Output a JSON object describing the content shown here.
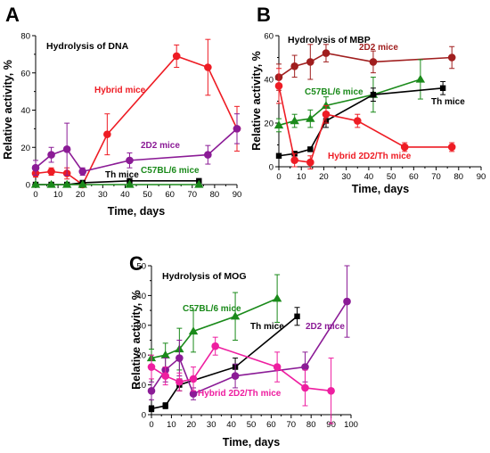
{
  "chart_data": [
    {
      "type": "line",
      "panel_letter": "A",
      "title": "Hydrolysis of DNA",
      "xlabel": "Time, days",
      "ylabel": "Relative activity, %",
      "xlim": [
        0,
        90
      ],
      "ylim": [
        0,
        80
      ],
      "xticks": [
        0,
        10,
        20,
        30,
        40,
        50,
        60,
        70,
        80,
        90
      ],
      "yticks": [
        0,
        20,
        40,
        60,
        80
      ],
      "series": [
        {
          "name": "Hybrid mice",
          "label_lines": [
            "Hybrid mice"
          ],
          "color": "#ee1c24",
          "marker": "circle",
          "x": [
            0,
            7,
            14,
            21,
            32,
            63,
            77,
            90
          ],
          "y": [
            6,
            7,
            6,
            0,
            27,
            69,
            63,
            30
          ],
          "err": [
            2,
            2,
            3,
            1,
            11,
            6,
            15,
            12
          ]
        },
        {
          "name": "2D2 mice",
          "label_lines": [
            "2D2 mice"
          ],
          "color": "#8b1b96",
          "marker": "circle",
          "x": [
            0,
            7,
            14,
            21,
            42,
            77,
            90
          ],
          "y": [
            9,
            16,
            19,
            7,
            13,
            16,
            30
          ],
          "err": [
            4,
            4,
            14,
            2,
            4,
            5,
            8
          ]
        },
        {
          "name": "Th mice",
          "label_lines": [
            "Th mice"
          ],
          "color": "#000000",
          "marker": "square",
          "x": [
            0,
            7,
            14,
            21,
            42,
            73
          ],
          "y": [
            0,
            0,
            0,
            1,
            2,
            2
          ],
          "err": [
            0,
            0,
            0,
            0,
            0,
            0
          ]
        },
        {
          "name": "C57BL/6 mice",
          "label_lines": [
            "C57BL/6 mice"
          ],
          "color": "#1a8a1a",
          "marker": "triangle",
          "x": [
            0,
            7,
            14,
            21,
            42,
            73
          ],
          "y": [
            0,
            0,
            0,
            0,
            0,
            0
          ],
          "err": [
            0,
            0,
            0,
            0,
            0,
            0
          ]
        }
      ]
    },
    {
      "type": "line",
      "panel_letter": "B",
      "title": "Hydrolysis of MBP",
      "xlabel": "Time, days",
      "ylabel": "Relative activity, %",
      "xlim": [
        0,
        90
      ],
      "ylim": [
        0,
        60
      ],
      "xticks": [
        0,
        10,
        20,
        30,
        40,
        50,
        60,
        70,
        80,
        90
      ],
      "yticks": [
        0,
        20,
        40,
        60
      ],
      "series": [
        {
          "name": "2D2 mice",
          "label_lines": [
            "2D2 mice"
          ],
          "color": "#a01e1e",
          "marker": "circle",
          "x": [
            0,
            7,
            14,
            21,
            42,
            77
          ],
          "y": [
            41,
            46,
            48,
            52,
            48,
            50
          ],
          "err": [
            6,
            5,
            8,
            4,
            5,
            5
          ]
        },
        {
          "name": "C57BL/6 mice",
          "label_lines": [
            "C57BL/6 mice"
          ],
          "color": "#1a8a1a",
          "marker": "triangle",
          "x": [
            0,
            7,
            14,
            21,
            42,
            63
          ],
          "y": [
            19,
            21,
            22,
            28,
            33,
            40
          ],
          "err": [
            3,
            3,
            4,
            4,
            8,
            9
          ]
        },
        {
          "name": "Th mice",
          "label_lines": [
            "Th mice"
          ],
          "color": "#000000",
          "marker": "square",
          "x": [
            0,
            7,
            14,
            21,
            42,
            73
          ],
          "y": [
            5,
            6,
            8,
            21,
            33,
            36
          ],
          "err": [
            1,
            1,
            1,
            3,
            3,
            3
          ]
        },
        {
          "name": "Hybrid 2D2/Th mice",
          "label_lines": [
            "Hybrid 2D2/Th mice"
          ],
          "color": "#ee1c24",
          "marker": "circle",
          "x": [
            0,
            7,
            14,
            21,
            35,
            56,
            77
          ],
          "y": [
            37,
            3,
            2,
            24,
            21,
            9,
            9
          ],
          "err": [
            8,
            3,
            3,
            4,
            3,
            2,
            2
          ]
        }
      ]
    },
    {
      "type": "line",
      "panel_letter": "C",
      "title": "Hydrolysis of MOG",
      "xlabel": "Time, days",
      "ylabel": "Relative activity, %",
      "xlim": [
        0,
        100
      ],
      "ylim": [
        0,
        50
      ],
      "xticks": [
        0,
        10,
        20,
        30,
        40,
        50,
        60,
        70,
        80,
        90,
        100
      ],
      "yticks": [
        0,
        10,
        20,
        30,
        40,
        50
      ],
      "series": [
        {
          "name": "C57BL/6 mice",
          "label_lines": [
            "C57BL/6 mice"
          ],
          "color": "#1a8a1a",
          "marker": "triangle",
          "x": [
            0,
            7,
            14,
            21,
            42,
            63
          ],
          "y": [
            19,
            20,
            22,
            28,
            33,
            39
          ],
          "err": [
            3,
            4,
            7,
            7,
            8,
            8
          ]
        },
        {
          "name": "Th mice",
          "label_lines": [
            "Th mice"
          ],
          "color": "#000000",
          "marker": "square",
          "x": [
            0,
            7,
            14,
            42,
            73
          ],
          "y": [
            2,
            3,
            10,
            16,
            33
          ],
          "err": [
            1,
            1,
            2,
            3,
            3
          ]
        },
        {
          "name": "2D2 mice",
          "label_lines": [
            "2D2 mice"
          ],
          "color": "#8b1b96",
          "marker": "circle",
          "x": [
            0,
            7,
            14,
            21,
            42,
            77,
            98
          ],
          "y": [
            8,
            15,
            19,
            7,
            13,
            16,
            38
          ],
          "err": [
            3,
            4,
            6,
            2,
            4,
            5,
            12
          ]
        },
        {
          "name": "Hybrid 2D2/Th mice",
          "label_lines": [
            "Hybrid 2D2/Th mice"
          ],
          "color": "#ee1ea0",
          "marker": "circle",
          "x": [
            0,
            7,
            14,
            21,
            32,
            63,
            77,
            90
          ],
          "y": [
            16,
            13,
            11,
            12,
            23,
            16,
            9,
            8
          ],
          "err": [
            4,
            3,
            3,
            4,
            3,
            5,
            6,
            11
          ]
        }
      ]
    }
  ]
}
